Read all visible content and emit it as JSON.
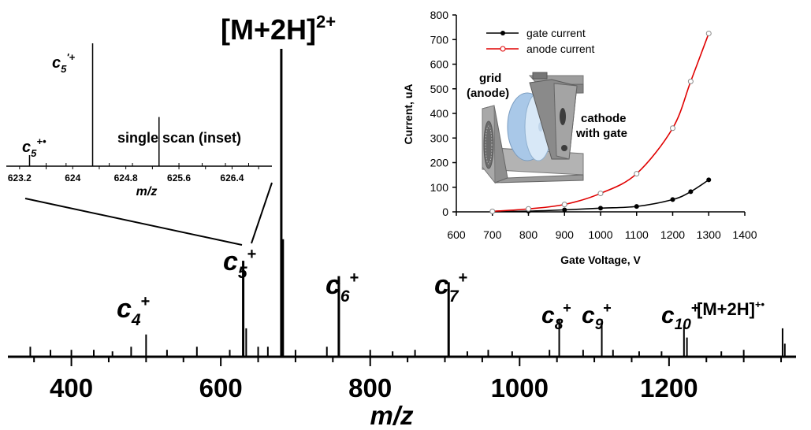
{
  "chart_data": [
    {
      "type": "line",
      "role": "mass-spectrum",
      "xlabel": "m/z",
      "xlim": [
        315,
        1370
      ],
      "xticks": [
        400,
        600,
        800,
        1000,
        1200
      ],
      "ylim": [
        0,
        100
      ],
      "peaks": {
        "x": [
          345,
          372,
          400,
          430,
          455,
          480,
          500,
          528,
          568,
          612,
          630,
          634,
          650,
          663,
          681,
          683,
          700,
          742,
          758,
          800,
          830,
          860,
          905,
          930,
          958,
          990,
          1040,
          1053,
          1085,
          1110,
          1125,
          1160,
          1190,
          1220,
          1224,
          1270,
          1300,
          1352,
          1355
        ],
        "y": [
          3,
          2,
          2,
          2,
          1.5,
          3,
          7,
          2,
          3,
          2,
          31,
          9,
          3,
          3,
          100,
          38,
          2,
          3,
          26,
          2,
          1.5,
          2,
          24,
          1.5,
          2,
          1.5,
          2,
          12,
          2,
          12,
          2,
          1.5,
          1.5,
          10,
          6,
          1.5,
          2,
          9,
          4
        ]
      },
      "annotations": [
        {
          "label_text": "[M+2H]",
          "label_sup": "2+",
          "x": 681
        },
        {
          "label_text": "c",
          "label_sub": "4",
          "label_sup": "+",
          "x": 500
        },
        {
          "label_text": "c",
          "label_sub": "5",
          "label_sup": "+",
          "x": 630
        },
        {
          "label_text": "c",
          "label_sub": "6",
          "label_sup": "+",
          "x": 758
        },
        {
          "label_text": "c",
          "label_sub": "7",
          "label_sup": "+",
          "x": 905
        },
        {
          "label_text": "c",
          "label_sub": "8",
          "label_sup": "+",
          "x": 1053
        },
        {
          "label_text": "c",
          "label_sub": "9",
          "label_sup": "+",
          "x": 1110
        },
        {
          "label_text": "c",
          "label_sub": "10",
          "label_sup": "+",
          "x": 1220
        },
        {
          "label_text": "[M+2H]",
          "label_sup": "+•",
          "x": 1352
        }
      ]
    },
    {
      "type": "line",
      "role": "inset-spectrum",
      "title": "single scan (inset)",
      "xlabel": "m/z",
      "xlim": [
        623.0,
        627.0
      ],
      "xticks": [
        "623.2",
        "624",
        "624.8",
        "625.6",
        "626.4"
      ],
      "ylim": [
        0,
        100
      ],
      "peaks": {
        "x": [
          623.35,
          624.3,
          625.3
        ],
        "y": [
          9,
          100,
          40
        ]
      },
      "labels": [
        {
          "label_text": "c",
          "label_sub": "5",
          "label_sup": "+•"
        },
        {
          "label_text": "c",
          "label_sub": "5",
          "label_sup": "'+"
        }
      ]
    },
    {
      "type": "line",
      "role": "current-vs-voltage",
      "xlabel": "Gate Voltage, V",
      "ylabel": "Current, uA",
      "xlim": [
        600,
        1400
      ],
      "ylim": [
        0,
        800
      ],
      "xticks": [
        600,
        700,
        800,
        900,
        1000,
        1100,
        1200,
        1300,
        1400
      ],
      "yticks": [
        0,
        100,
        200,
        300,
        400,
        500,
        600,
        700,
        800
      ],
      "legend_position": "top-left",
      "series": [
        {
          "name": "gate current",
          "color": "#000000",
          "marker": "filled-circle",
          "x": [
            700,
            800,
            900,
            1000,
            1100,
            1200,
            1250,
            1300
          ],
          "y": [
            1,
            3,
            8,
            15,
            22,
            50,
            82,
            130
          ]
        },
        {
          "name": "anode current",
          "color": "#e00000",
          "marker": "open-circle",
          "x": [
            700,
            800,
            900,
            1000,
            1100,
            1200,
            1250,
            1300
          ],
          "y": [
            2,
            12,
            30,
            75,
            155,
            340,
            530,
            725
          ]
        }
      ],
      "labels": {
        "grid": [
          "grid",
          "(anode)"
        ],
        "cathode": [
          "cathode",
          "with gate"
        ]
      }
    }
  ]
}
